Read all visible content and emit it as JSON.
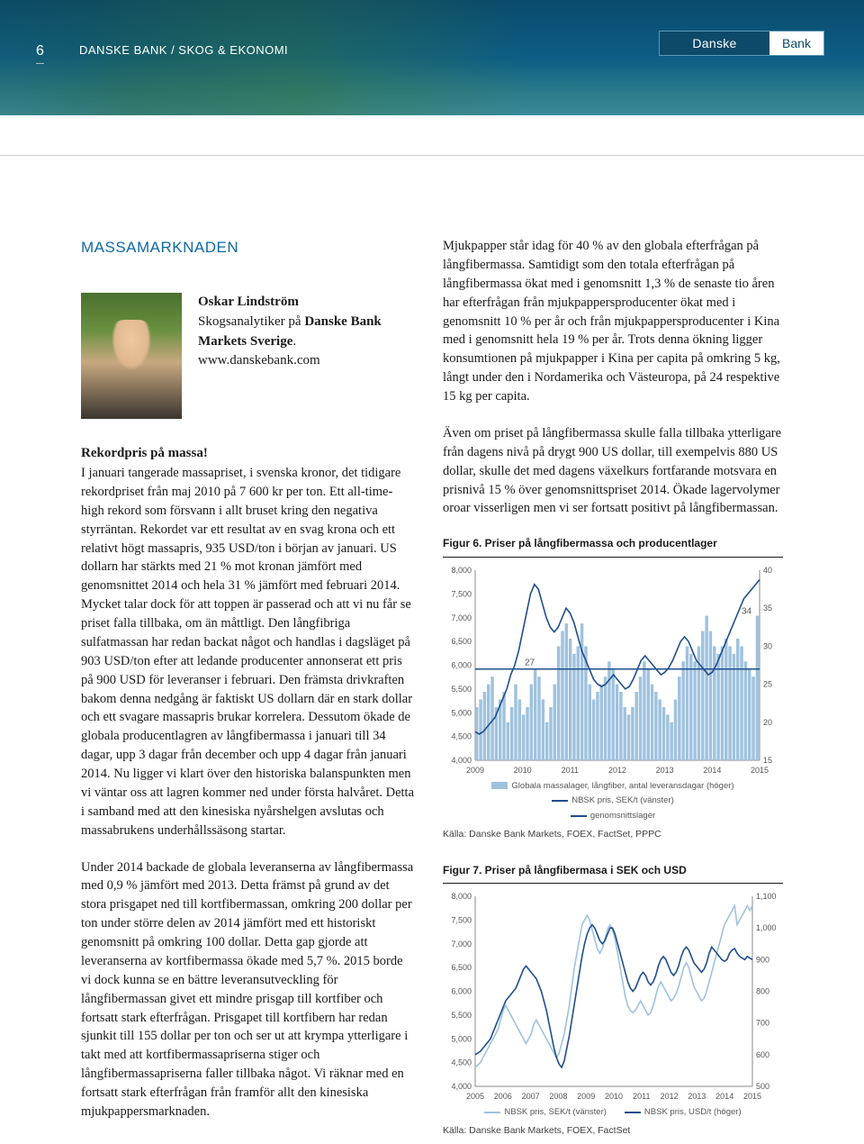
{
  "header": {
    "page_number": "6",
    "path": "DANSKE BANK / SKOG & EKONOMI",
    "logo_left": "Danske",
    "logo_right": "Bank"
  },
  "section_title": "MASSAMARKNADEN",
  "author": {
    "name": "Oskar Lindström",
    "role_prefix": "Skogsanalytiker på ",
    "role_bold": "Danske Bank Markets Sverige",
    "role_suffix": ".",
    "link": "www.danskebank.com"
  },
  "left_col": {
    "subhead": "Rekordpris på massa!",
    "p1": "I januari tangerade massapriset, i svenska kronor, det tidigare rekordpriset från maj 2010 på 7 600 kr per ton. Ett all-time-high rekord som försvann i allt bruset kring den negativa styrräntan. Rekordet var ett resultat av en svag krona och ett relativt högt massapris, 935 USD/ton i början av januari. US dollarn har stärkts med 21 % mot kronan jämfört med genomsnittet 2014 och hela 31 % jämfört med februari 2014. Mycket talar dock för att toppen är passerad och att vi nu får se priset falla tillbaka, om än måttligt. Den långfibriga sulfatmassan har redan backat något och handlas i dagsläget på 903 USD/ton efter att ledande producenter annonserat ett pris på 900 USD för leveranser i februari. Den främsta drivkraften bakom denna nedgång är faktiskt US dollarn där en stark dollar och ett svagare massapris brukar korrelera. Dessutom ökade de globala producentlagren av långfibermassa i januari till 34 dagar, upp 3 dagar från december och upp 4 dagar från januari 2014. Nu ligger vi klart över den historiska balanspunkten men vi väntar oss att lagren kommer ned under första halvåret. Detta i samband med att den kinesiska nyårshelgen avslutas och massabrukens underhållssäsong startar.",
    "p2": "Under 2014 backade de globala leveranserna av långfibermassa med 0,9 % jämfört med 2013. Detta främst på grund av det stora prisgapet ned till kortfibermassan, omkring 200 dollar per ton under större delen av 2014 jämfört med ett historiskt genomsnitt på omkring 100 dollar. Detta gap gjorde att leveranserna av kortfibermassa ökade med 5,7 %. 2015 borde vi dock kunna se en bättre leveransutveckling för långfibermassan givet ett mindre prisgap till kortfiber och fortsatt stark efterfrågan. Prisgapet till kortfibern har redan sjunkit till 155 dollar per ton och ser ut att krympa ytterligare i takt med att kortfibermassapriserna stiger och långfibermassapriserna faller tillbaka något. Vi räknar med en fortsatt stark efterfrågan från framför allt den kinesiska mjukpappersmarknaden."
  },
  "right_col": {
    "p1": "Mjukpapper står idag för 40 % av den globala efterfrågan på långfibermassa. Samtidigt som den totala efterfrågan på långfibermassa ökat med i genomsnitt 1,3 % de senaste tio åren har efterfrågan från mjukpappersproducenter ökat med i genomsnitt 10 % per år och från mjukpappersproducenter i Kina med i genomsnitt hela 19 % per år. Trots denna ökning ligger konsumtionen på mjukpapper i Kina per capita på omkring 5 kg, långt under den i Nordamerika och Västeuropa, på 24 respektive 15 kg per capita.",
    "p2": "Även om priset på långfibermassa skulle falla tillbaka ytterligare från dagens nivå på drygt 900 US dollar, till exempelvis 880 US dollar, skulle det med dagens växelkurs fortfarande motsvara en prisnivå 15 % över genomsnittspriset 2014. Ökade lagervolymer oroar visserligen men vi ser fortsatt positivt på långfibermassan."
  },
  "figure6": {
    "title": "Figur 6. Priser på långfibermassa och producentlager",
    "source": "Källa:  Danske Bank Markets, FOEX, FactSet, PPPC",
    "left_axis": {
      "min": 4000,
      "max": 8000,
      "step": 500,
      "label_fmt": "comma"
    },
    "right_axis": {
      "min": 15,
      "max": 40,
      "step": 5
    },
    "x_labels": [
      "2009",
      "2010",
      "2011",
      "2012",
      "2013",
      "2014",
      "2015"
    ],
    "colors": {
      "bars": "#9fc2de",
      "line_sek": "#1f4e8c",
      "line_avg": "#1f4e8c",
      "grid": "#e6e6e6",
      "axis": "#888888",
      "text": "#555555"
    },
    "avg_line_value": 27,
    "annotation_27": "27",
    "annotation_34": "34",
    "bars": [
      22,
      23,
      24,
      25,
      26,
      22,
      23,
      24,
      20,
      22,
      25,
      23,
      21,
      22,
      25,
      27,
      26,
      23,
      20,
      22,
      25,
      30,
      32,
      33,
      31,
      29,
      30,
      33,
      30,
      25,
      23,
      24,
      25,
      26,
      28,
      27,
      25,
      24,
      22,
      21,
      22,
      24,
      26,
      28,
      27,
      25,
      24,
      23,
      22,
      21,
      20,
      23,
      26,
      28,
      30,
      29,
      28,
      30,
      32,
      34,
      32,
      30,
      29,
      30,
      31,
      30,
      29,
      31,
      30,
      28,
      27,
      26,
      34
    ],
    "line_sek": [
      4600,
      4550,
      4600,
      4700,
      4800,
      4900,
      5100,
      5300,
      5500,
      5800,
      6000,
      6300,
      6700,
      7100,
      7500,
      7700,
      7600,
      7300,
      7000,
      6800,
      6700,
      6800,
      7000,
      7200,
      7100,
      6900,
      6600,
      6300,
      6100,
      5900,
      5700,
      5600,
      5550,
      5600,
      5700,
      5800,
      5700,
      5600,
      5500,
      5550,
      5700,
      5900,
      6100,
      6200,
      6100,
      6000,
      5900,
      5800,
      5850,
      5950,
      6100,
      6300,
      6500,
      6600,
      6500,
      6300,
      6100,
      6000,
      5900,
      5800,
      5850,
      6000,
      6200,
      6400,
      6600,
      6800,
      7000,
      7200,
      7400,
      7500,
      7600,
      7700,
      7800
    ],
    "legend": [
      {
        "type": "swatch",
        "color": "#9fc2de",
        "label": "Globala massalager, långfiber, antal leveransdagar (höger)"
      },
      {
        "type": "line",
        "color": "#1f4e8c",
        "label": "NBSK pris, SEK/t (vänster)"
      },
      {
        "type": "line",
        "color": "#1f4e8c",
        "label": "genomsnittslager"
      }
    ]
  },
  "figure7": {
    "title": "Figur 7. Priser på långfibermasa i SEK och USD",
    "source": "Källa: Danske Bank Markets, FOEX, FactSet",
    "left_axis": {
      "min": 4000,
      "max": 8000,
      "step": 500,
      "label_fmt": "comma"
    },
    "right_axis": {
      "min": 500,
      "max": 1100,
      "step": 100,
      "label_fmt": "comma"
    },
    "x_labels": [
      "2005",
      "2006",
      "2007",
      "2008",
      "2009",
      "2010",
      "2011",
      "2012",
      "2013",
      "2014",
      "2015"
    ],
    "colors": {
      "line_sek": "#9fc2de",
      "line_usd": "#1f4e8c",
      "grid": "#e6e6e6",
      "axis": "#888888",
      "text": "#555555"
    },
    "line_sek": [
      4400,
      4450,
      4500,
      4600,
      4700,
      4800,
      4900,
      5000,
      5100,
      5200,
      5400,
      5600,
      5700,
      5600,
      5500,
      5400,
      5300,
      5200,
      5100,
      5000,
      4900,
      5000,
      5100,
      5300,
      5400,
      5300,
      5200,
      5100,
      5000,
      4900,
      4800,
      4700,
      4600,
      4700,
      4900,
      5100,
      5400,
      5700,
      6100,
      6500,
      6800,
      7100,
      7400,
      7500,
      7600,
      7500,
      7300,
      7100,
      6900,
      6800,
      6900,
      7100,
      7300,
      7400,
      7300,
      7100,
      6800,
      6500,
      6200,
      5900,
      5700,
      5600,
      5550,
      5600,
      5700,
      5800,
      5700,
      5600,
      5500,
      5550,
      5700,
      5900,
      6100,
      6200,
      6100,
      6000,
      5900,
      5800,
      5850,
      5950,
      6100,
      6300,
      6500,
      6600,
      6500,
      6300,
      6100,
      6000,
      5900,
      5800,
      5850,
      6000,
      6200,
      6400,
      6600,
      6800,
      7000,
      7200,
      7400,
      7500,
      7600,
      7700,
      7800,
      7400,
      7500,
      7600,
      7700,
      7800,
      7700,
      7800
    ],
    "line_usd": [
      600,
      605,
      610,
      620,
      630,
      640,
      650,
      670,
      690,
      710,
      730,
      750,
      770,
      780,
      790,
      800,
      810,
      830,
      850,
      870,
      880,
      870,
      860,
      850,
      840,
      820,
      800,
      770,
      740,
      700,
      660,
      620,
      590,
      570,
      560,
      580,
      620,
      660,
      710,
      760,
      810,
      860,
      910,
      950,
      980,
      1000,
      1010,
      1000,
      980,
      960,
      950,
      960,
      980,
      1000,
      1000,
      980,
      950,
      920,
      890,
      860,
      830,
      810,
      800,
      810,
      830,
      850,
      860,
      850,
      830,
      820,
      830,
      850,
      880,
      900,
      910,
      900,
      880,
      860,
      850,
      860,
      880,
      910,
      930,
      940,
      930,
      910,
      890,
      880,
      870,
      860,
      870,
      890,
      920,
      940,
      930,
      920,
      910,
      900,
      895,
      900,
      920,
      930,
      935,
      920,
      910,
      905,
      900,
      910,
      905,
      900
    ],
    "legend": [
      {
        "type": "line",
        "color": "#9fc2de",
        "label": "NBSK pris, SEK/t (vänster)"
      },
      {
        "type": "line",
        "color": "#1f4e8c",
        "label": "NBSK pris, USD/t (höger)"
      }
    ]
  }
}
